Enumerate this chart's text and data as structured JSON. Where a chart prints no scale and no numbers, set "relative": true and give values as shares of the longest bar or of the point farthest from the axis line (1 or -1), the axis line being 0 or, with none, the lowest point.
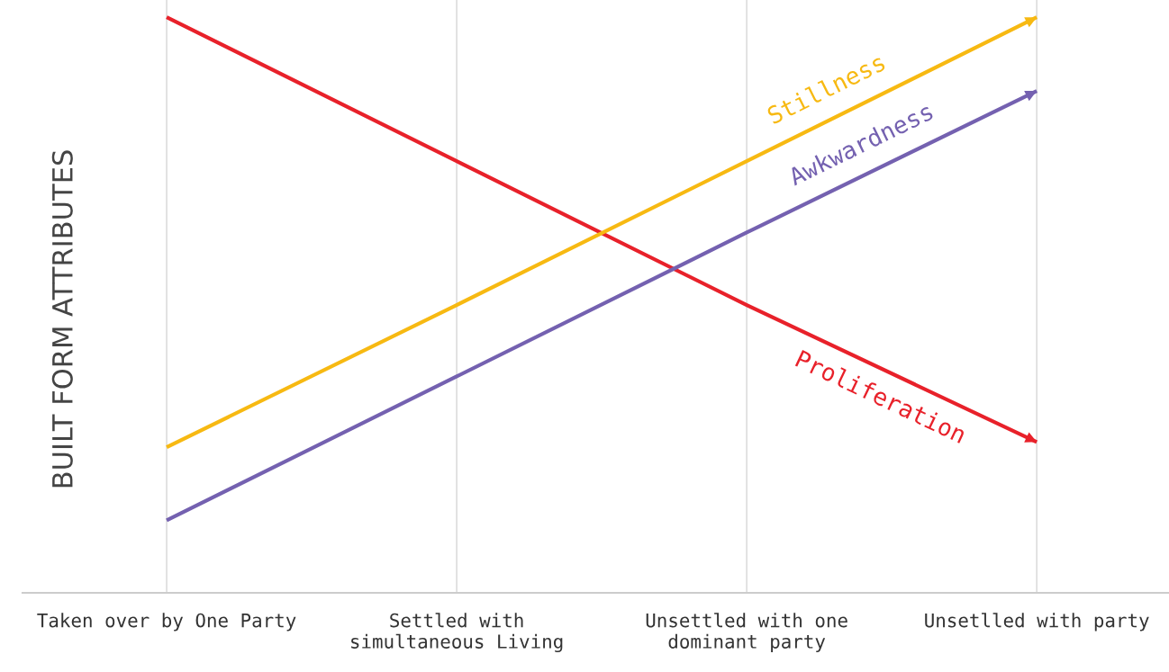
{
  "chart_data": {
    "type": "line",
    "relative": true,
    "ylabel": "BUILT FORM ATTRIBUTES",
    "grid": "x",
    "legend": false,
    "categories": [
      "Taken over by One Party",
      "Settled with\nsimultaneous Living",
      "Unsettled with one\ndominant party",
      "Unsetlled with party"
    ],
    "series": [
      {
        "name": "Proliferation",
        "color": "#e8212a",
        "values": [
          1,
          0.75,
          0.5,
          0.262
        ]
      },
      {
        "name": "Stillness",
        "color": "#f7b912",
        "values": [
          0.253,
          0.5,
          0.75,
          1
        ]
      },
      {
        "name": "Awkwardness",
        "color": "#7461b0",
        "values": [
          0.126,
          0.376,
          0.626,
          0.872
        ]
      }
    ]
  }
}
